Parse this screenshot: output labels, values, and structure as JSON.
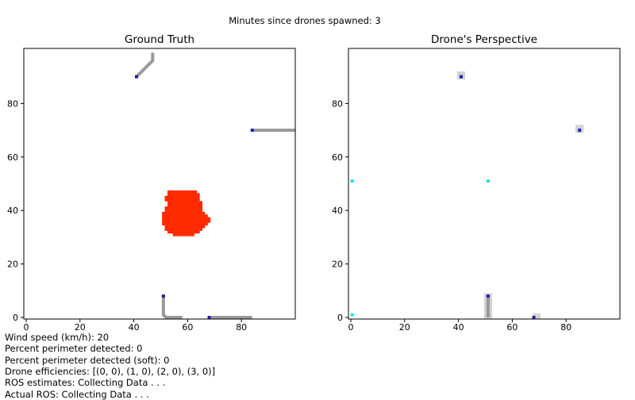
{
  "suptitle": "Minutes since drones spawned: 3",
  "chart_data": [
    {
      "type": "heatmap",
      "title": "Ground Truth",
      "xlim": [
        0,
        100
      ],
      "ylim": [
        0,
        100
      ],
      "xticks": [
        0,
        20,
        40,
        60,
        80
      ],
      "yticks": [
        0,
        20,
        40,
        60,
        80
      ],
      "fire": {
        "color": "#ff2a00",
        "rows": [
          {
            "y": 47,
            "x0": 53,
            "x1": 63
          },
          {
            "y": 46,
            "x0": 53,
            "x1": 64
          },
          {
            "y": 45,
            "x0": 52,
            "x1": 64
          },
          {
            "y": 44,
            "x0": 52,
            "x1": 64
          },
          {
            "y": 43,
            "x0": 53,
            "x1": 65
          },
          {
            "y": 42,
            "x0": 53,
            "x1": 65
          },
          {
            "y": 41,
            "x0": 52,
            "x1": 65
          },
          {
            "y": 40,
            "x0": 52,
            "x1": 65
          },
          {
            "y": 39,
            "x0": 51,
            "x1": 66
          },
          {
            "y": 38,
            "x0": 51,
            "x1": 67
          },
          {
            "y": 37,
            "x0": 51,
            "x1": 68
          },
          {
            "y": 36,
            "x0": 51,
            "x1": 68
          },
          {
            "y": 35,
            "x0": 51,
            "x1": 67
          },
          {
            "y": 34,
            "x0": 52,
            "x1": 66
          },
          {
            "y": 33,
            "x0": 52,
            "x1": 65
          },
          {
            "y": 32,
            "x0": 53,
            "x1": 64
          },
          {
            "y": 31,
            "x0": 55,
            "x1": 62
          }
        ]
      },
      "paths": [
        {
          "color": "#999999",
          "points": [
            [
              47,
              99
            ],
            [
              47,
              96
            ],
            [
              46,
              95
            ],
            [
              45,
              94
            ],
            [
              44,
              93
            ],
            [
              43,
              92
            ],
            [
              42,
              91
            ],
            [
              41,
              90
            ]
          ]
        },
        {
          "color": "#999999",
          "points": [
            [
              100,
              70
            ],
            [
              84,
              70
            ]
          ]
        },
        {
          "color": "#999999",
          "points": [
            [
              58,
              0
            ],
            [
              52,
              0
            ],
            [
              51,
              1
            ],
            [
              51,
              8
            ]
          ]
        },
        {
          "color": "#999999",
          "points": [
            [
              84,
              0
            ],
            [
              68,
              0
            ]
          ]
        }
      ],
      "drones": [
        {
          "x": 41,
          "y": 90,
          "color": "#1f1fb4"
        },
        {
          "x": 84,
          "y": 70,
          "color": "#1f1fb4"
        },
        {
          "x": 51,
          "y": 8,
          "color": "#1f1fb4"
        },
        {
          "x": 68,
          "y": 0,
          "color": "#1f1fb4"
        }
      ]
    },
    {
      "type": "heatmap",
      "title": "Drone's Perspective",
      "xlim": [
        0,
        100
      ],
      "ylim": [
        0,
        100
      ],
      "xticks": [
        0,
        20,
        40,
        60,
        80
      ],
      "yticks": [
        0,
        20,
        40,
        60,
        80
      ],
      "scanned_areas": [
        {
          "x0": 39.5,
          "x1": 42.5,
          "y0": 89,
          "y1": 92,
          "color": "#d3d3d3"
        },
        {
          "x0": 83.5,
          "x1": 86.5,
          "y0": 69,
          "y1": 72,
          "color": "#d3d3d3"
        },
        {
          "x0": 49.5,
          "x1": 52.5,
          "y0": -0.5,
          "y1": 9,
          "color": "#d3d3d3"
        },
        {
          "x0": 67.5,
          "x1": 70.5,
          "y0": -0.5,
          "y1": 1.5,
          "color": "#d3d3d3"
        }
      ],
      "paths": [
        {
          "color": "#999999",
          "points": [
            [
              51,
              0
            ],
            [
              51,
              8
            ]
          ]
        }
      ],
      "markers": [
        {
          "x": 0.5,
          "y": 51,
          "color": "#22e0e0"
        },
        {
          "x": 51,
          "y": 51,
          "color": "#22e0e0"
        },
        {
          "x": 0.5,
          "y": 1,
          "color": "#22e0e0"
        }
      ],
      "drones": [
        {
          "x": 41,
          "y": 90,
          "color": "#1f1fb4"
        },
        {
          "x": 85,
          "y": 70,
          "color": "#1f1fb4"
        },
        {
          "x": 51,
          "y": 8,
          "color": "#1f1fb4"
        },
        {
          "x": 68,
          "y": 0,
          "color": "#1f1fb4"
        }
      ]
    }
  ],
  "info": {
    "wind": "Wind speed (km/h): 20",
    "perimeter": "Percent perimeter detected: 0",
    "perimeter_soft": "Percent perimeter detected (soft): 0",
    "efficiencies": "Drone efficiencies: [(0, 0), (1, 0), (2, 0), (3, 0)]",
    "ros_est": "ROS estimates: Collecting Data . . .",
    "ros_actual": "Actual ROS: Collecting Data . . ."
  }
}
